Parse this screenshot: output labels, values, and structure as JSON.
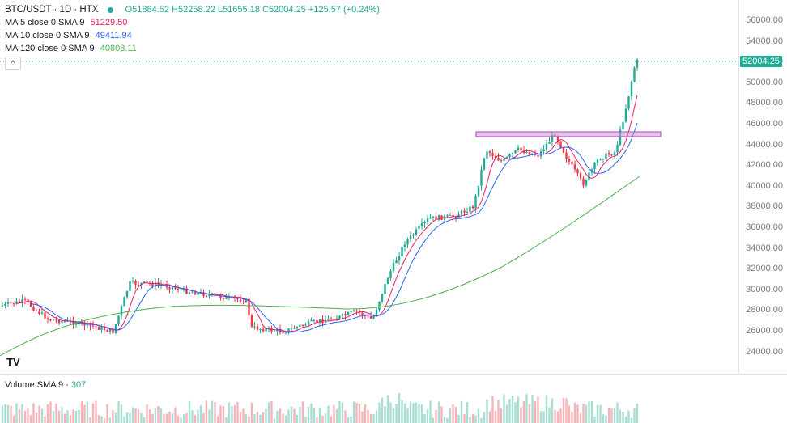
{
  "legend": {
    "symbol": "BTC/USDT · 1D · HTX",
    "ohlc": "O51884.52 H52258.22 L51655.18 C52004.25 +125.57 (+0.24%)",
    "ma5_label": "MA 5 close 0 SMA 9",
    "ma5_value": "51229.50",
    "ma10_label": "MA 10 close 0 SMA 9",
    "ma10_value": "49411.94",
    "ma120_label": "MA 120 close 0 SMA 9",
    "ma120_value": "40808.11",
    "collapse": "^"
  },
  "price_scale": {
    "ticks": [
      "56000.00",
      "54000.00",
      "52000.00",
      "50000.00",
      "48000.00",
      "46000.00",
      "44000.00",
      "42000.00",
      "40000.00",
      "38000.00",
      "36000.00",
      "34000.00",
      "32000.00",
      "30000.00",
      "28000.00",
      "26000.00",
      "24000.00"
    ],
    "last_price": "52004.25"
  },
  "volume": {
    "label": "Volume SMA 9",
    "value": "307"
  },
  "logo": "TV",
  "colors": {
    "up": "#22ab94",
    "down": "#f23645",
    "ma5": "#e91e63",
    "ma10": "#2962ff",
    "ma120": "#4caf50",
    "zone": "#ce93d8"
  }
}
